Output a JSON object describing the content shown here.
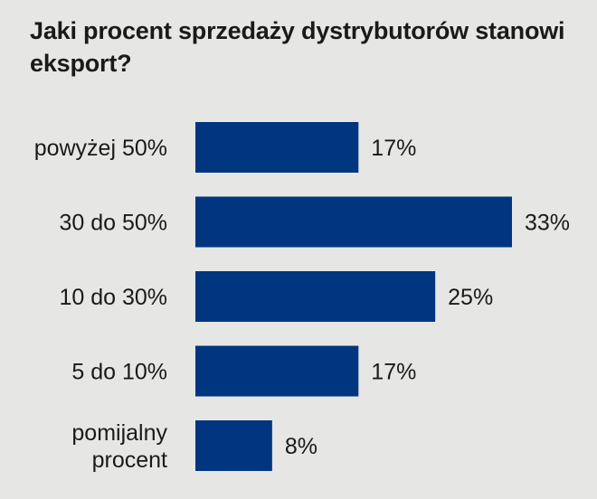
{
  "chart_data": {
    "type": "bar",
    "orientation": "horizontal",
    "title": "Jaki procent sprzedaży dystrybutorów stanowi eksport?",
    "categories": [
      "powyżej 50%",
      "30 do 50%",
      "10 do 30%",
      "5 do 10%",
      "pomijalny procent"
    ],
    "values": [
      17,
      33,
      25,
      17,
      8
    ],
    "value_labels": [
      "17%",
      "33%",
      "25%",
      "17%",
      "8%"
    ],
    "xlim": [
      0,
      33
    ],
    "grid": false,
    "legend": "none",
    "bar_color": "#003580"
  }
}
